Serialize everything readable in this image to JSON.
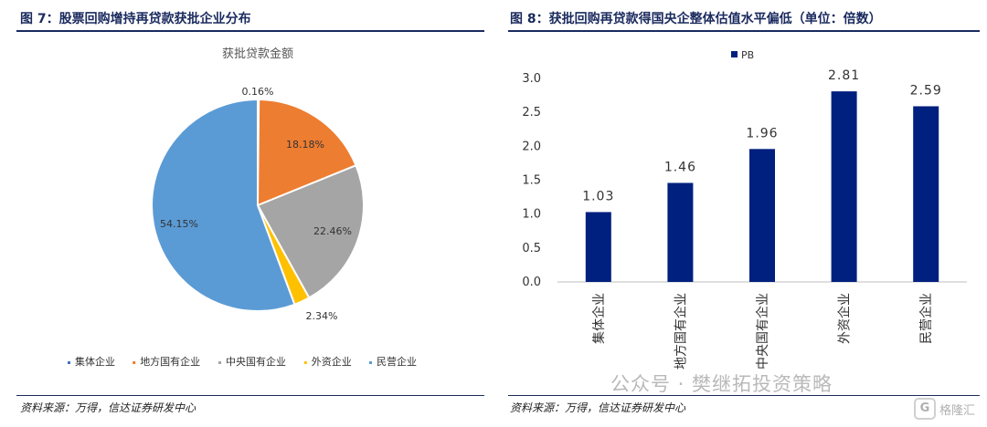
{
  "left": {
    "figure_title": "图 7：股票回购增持再贷款获批企业分布",
    "source": "资料来源：万得，信达证券研发中心"
  },
  "right": {
    "figure_title": "图 8：获批回购再贷款得国央企整体估值水平偏低（单位：倍数）",
    "source": "资料来源：万得，信达证券研发中心"
  },
  "chart_data": [
    {
      "type": "pie",
      "title": "获批贷款金额",
      "slices": [
        {
          "label": "集体企业",
          "value": 0.16,
          "display": "0.16%",
          "color": "#4472c4"
        },
        {
          "label": "地方国有企业",
          "value": 18.18,
          "display": "18.18%",
          "color": "#ed7d31"
        },
        {
          "label": "中央国有企业",
          "value": 22.46,
          "display": "22.46%",
          "color": "#a5a5a5"
        },
        {
          "label": "外资企业",
          "value": 2.34,
          "display": "2.34%",
          "color": "#ffc000"
        },
        {
          "label": "民营企业",
          "value": 54.15,
          "display": "54.15%",
          "color": "#5b9bd5"
        }
      ],
      "legend_position": "bottom"
    },
    {
      "type": "bar",
      "series": [
        {
          "name": "PB",
          "values": [
            1.03,
            1.46,
            1.96,
            2.81,
            2.59
          ],
          "labels": [
            "1.03",
            "1.46",
            "1.96",
            "2.81",
            "2.59"
          ],
          "color": "#002080"
        }
      ],
      "categories": [
        "集体企业",
        "地方国有企业",
        "中央国有企业",
        "外资企业",
        "民营企业"
      ],
      "ylim": [
        0,
        3.0
      ],
      "yticks": [
        "0.0",
        "0.5",
        "1.0",
        "1.5",
        "2.0",
        "2.5",
        "3.0"
      ],
      "ytick_values": [
        0,
        0.5,
        1.0,
        1.5,
        2.0,
        2.5,
        3.0
      ],
      "legend_position": "top-left"
    }
  ],
  "watermark": {
    "text": "公众号 · 樊继拓投资策略",
    "logo_glyph": "G",
    "logo_text": "格隆汇"
  }
}
